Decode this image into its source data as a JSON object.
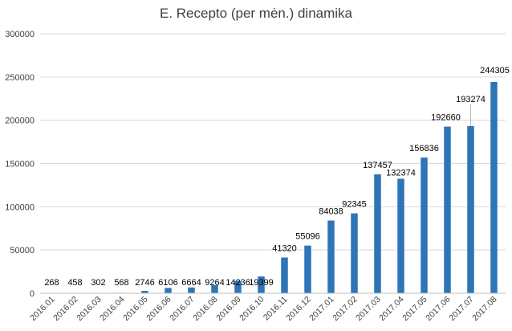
{
  "chart_data": {
    "type": "bar",
    "title": "E. Recepto (per mėn.) dinamika",
    "categories": [
      "2016.01",
      "2016.02",
      "2016.03",
      "2016.04",
      "2016.05",
      "2016.06",
      "2016.07",
      "2016.08",
      "2016.09",
      "2016.10",
      "2016.11",
      "2016.12",
      "2017.01",
      "2017.02",
      "2017.03",
      "2017.04",
      "2017.05",
      "2017.06",
      "2017.07",
      "2017.08"
    ],
    "values": [
      268,
      458,
      302,
      568,
      2746,
      6106,
      6664,
      9264,
      14236,
      19399,
      41320,
      55096,
      84038,
      92345,
      137457,
      132374,
      156836,
      192660,
      193274,
      244305
    ],
    "data_labels": [
      "268",
      "458",
      "302",
      "568",
      "2746",
      "6106",
      "6664",
      "9264",
      "14236",
      "19399",
      "41320",
      "55096",
      "84038",
      "92345",
      "137457",
      "132374",
      "156836",
      "192660",
      "193274",
      "244305"
    ],
    "ylim": [
      0,
      300000
    ],
    "yticks": [
      0,
      50000,
      100000,
      150000,
      200000,
      250000,
      300000
    ],
    "ytick_labels": [
      "0",
      "50000",
      "100000",
      "150000",
      "200000",
      "250000",
      "300000"
    ],
    "grid": true,
    "legend": "none",
    "bar_color": "#2e75b6"
  }
}
